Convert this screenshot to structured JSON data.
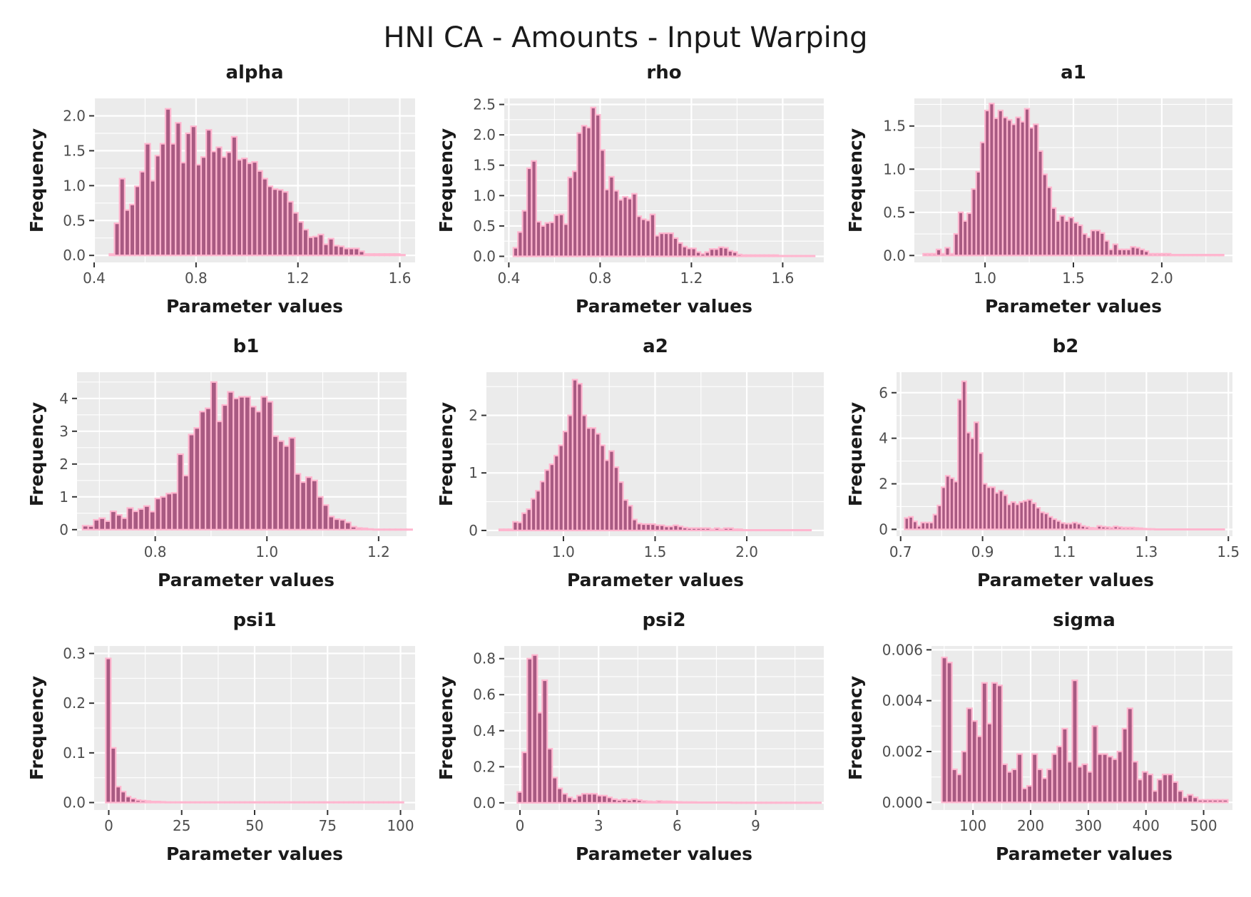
{
  "title": "HNI CA - Amounts - Input Warping",
  "colors": {
    "bar_fill": "#a85a82",
    "bar_outline": "#ffb6cf",
    "panel_bg": "#ebebeb",
    "grid": "#ffffff"
  },
  "chart_data": [
    {
      "type": "bar",
      "title": "alpha",
      "xlabel": "Parameter values",
      "ylabel": "Frequency",
      "xlim": [
        0.4,
        1.66
      ],
      "ylim": [
        -0.1,
        2.25
      ],
      "xticks": [
        0.4,
        0.8,
        1.2,
        1.6
      ],
      "xtick_labels": [
        "0.4",
        "0.8",
        "1.2",
        "1.6"
      ],
      "yticks": [
        0,
        0.5,
        1,
        1.5,
        2
      ],
      "ytick_labels": [
        "0.0",
        "0.5",
        "1.0",
        "1.5",
        "2.0"
      ],
      "bin_start": 0.46,
      "bin_width": 0.02,
      "values": [
        0.02,
        0.46,
        1.1,
        0.65,
        0.73,
        0.99,
        1.2,
        1.6,
        1.07,
        1.43,
        1.6,
        2.1,
        1.6,
        1.9,
        1.33,
        1.75,
        1.85,
        1.3,
        1.41,
        1.8,
        1.49,
        1.55,
        1.41,
        1.48,
        1.7,
        1.37,
        1.39,
        1.32,
        1.34,
        1.21,
        1.1,
        0.99,
        0.95,
        0.94,
        0.91,
        0.77,
        0.61,
        0.48,
        0.37,
        0.26,
        0.27,
        0.3,
        0.16,
        0.24,
        0.14,
        0.13,
        0.1,
        0.1,
        0.1,
        0.06,
        0.02,
        0.02,
        0.02,
        0.02,
        0.02,
        0.02,
        0.02,
        0.01
      ]
    },
    {
      "type": "bar",
      "title": "rho",
      "xlabel": "Parameter values",
      "ylabel": "Frequency",
      "xlim": [
        0.38,
        1.78
      ],
      "ylim": [
        -0.1,
        2.6
      ],
      "xticks": [
        0.4,
        0.8,
        1.2,
        1.6
      ],
      "xtick_labels": [
        "0.4",
        "0.8",
        "1.2",
        "1.6"
      ],
      "yticks": [
        0,
        0.5,
        1,
        1.5,
        2,
        2.5
      ],
      "ytick_labels": [
        "0.0",
        "0.5",
        "1.0",
        "1.5",
        "2.0",
        "2.5"
      ],
      "bin_start": 0.42,
      "bin_width": 0.02,
      "values": [
        0.14,
        0.4,
        0.75,
        1.45,
        1.57,
        0.57,
        0.5,
        0.55,
        0.56,
        0.68,
        0.69,
        0.53,
        1.3,
        1.4,
        2.03,
        2.15,
        2.12,
        2.45,
        2.33,
        1.75,
        1.1,
        1.31,
        1.08,
        0.93,
        0.98,
        0.95,
        1.03,
        0.66,
        0.61,
        0.59,
        0.69,
        0.34,
        0.38,
        0.38,
        0.38,
        0.3,
        0.22,
        0.16,
        0.13,
        0.13,
        0.07,
        0.04,
        0.07,
        0.12,
        0.12,
        0.15,
        0.14,
        0.09,
        0.07,
        0.03,
        0.02,
        0.02,
        0.02,
        0.02,
        0.02,
        0.02,
        0.02,
        0.02,
        0.01,
        0.01,
        0.01,
        0.01,
        0.01,
        0.01,
        0.01,
        0.01
      ]
    },
    {
      "type": "bar",
      "title": "a1",
      "xlabel": "Parameter values",
      "ylabel": "Frequency",
      "xlim": [
        0.6,
        2.4
      ],
      "ylim": [
        -0.08,
        1.82
      ],
      "xticks": [
        1.0,
        1.5,
        2.0
      ],
      "xtick_labels": [
        "1.0",
        "1.5",
        "2.0"
      ],
      "yticks": [
        0,
        0.5,
        1,
        1.5
      ],
      "ytick_labels": [
        "0.0",
        "0.5",
        "1.0",
        "1.5"
      ],
      "bin_start": 0.65,
      "bin_width": 0.025,
      "values": [
        0.02,
        0.02,
        0.02,
        0.07,
        0.02,
        0.09,
        0.02,
        0.25,
        0.5,
        0.4,
        0.49,
        0.77,
        0.97,
        1.31,
        1.68,
        1.76,
        1.59,
        1.68,
        1.6,
        1.57,
        1.52,
        1.6,
        1.55,
        1.7,
        1.48,
        1.52,
        1.21,
        0.94,
        0.79,
        0.55,
        0.4,
        0.46,
        0.4,
        0.44,
        0.38,
        0.35,
        0.25,
        0.21,
        0.29,
        0.29,
        0.26,
        0.17,
        0.07,
        0.13,
        0.07,
        0.07,
        0.07,
        0.1,
        0.09,
        0.07,
        0.05,
        0.02,
        0.02,
        0.02,
        0.02,
        0.02,
        0.01,
        0.01,
        0.01,
        0.01,
        0.01,
        0.01,
        0.01,
        0.01,
        0.01,
        0.01,
        0.01,
        0.01
      ]
    },
    {
      "type": "bar",
      "title": "b1",
      "xlabel": "Parameter values",
      "ylabel": "Frequency",
      "xlim": [
        0.66,
        1.25
      ],
      "ylim": [
        -0.2,
        4.8
      ],
      "xticks": [
        0.8,
        1.0,
        1.2
      ],
      "xtick_labels": [
        "0.8",
        "1.0",
        "1.2"
      ],
      "yticks": [
        0,
        1,
        2,
        3,
        4
      ],
      "ytick_labels": [
        "0",
        "1",
        "2",
        "3",
        "4"
      ],
      "bin_start": 0.67,
      "bin_width": 0.01,
      "values": [
        0.12,
        0.11,
        0.3,
        0.35,
        0.26,
        0.56,
        0.45,
        0.35,
        0.66,
        0.56,
        0.63,
        0.72,
        0.55,
        0.95,
        1.0,
        1.1,
        1.12,
        2.3,
        1.65,
        2.9,
        3.1,
        3.6,
        3.7,
        4.5,
        3.3,
        3.8,
        4.2,
        4.0,
        4.05,
        4.05,
        3.75,
        3.6,
        4.05,
        3.9,
        2.85,
        2.7,
        2.55,
        2.8,
        1.7,
        1.45,
        1.6,
        1.5,
        1.0,
        0.75,
        0.4,
        0.32,
        0.3,
        0.22,
        0.09,
        0.05,
        0.04,
        0.02,
        0.01,
        0.01,
        0.01,
        0.01,
        0.01,
        0.01,
        0.01
      ]
    },
    {
      "type": "bar",
      "title": "a2",
      "xlabel": "Parameter values",
      "ylabel": "Frequency",
      "xlim": [
        0.58,
        2.42
      ],
      "ylim": [
        -0.1,
        2.75
      ],
      "xticks": [
        1.0,
        1.5,
        2.0
      ],
      "xtick_labels": [
        "1.0",
        "1.5",
        "2.0"
      ],
      "yticks": [
        0,
        1,
        2
      ],
      "ytick_labels": [
        "0",
        "1",
        "2"
      ],
      "bin_start": 0.65,
      "bin_width": 0.025,
      "values": [
        0.02,
        0.02,
        0.02,
        0.15,
        0.14,
        0.3,
        0.37,
        0.55,
        0.69,
        0.85,
        1.05,
        1.15,
        1.3,
        1.48,
        1.72,
        2.0,
        2.62,
        2.55,
        2.0,
        1.78,
        1.78,
        1.68,
        1.48,
        1.22,
        1.38,
        1.1,
        0.84,
        0.53,
        0.43,
        0.19,
        0.12,
        0.11,
        0.11,
        0.11,
        0.09,
        0.09,
        0.07,
        0.07,
        0.09,
        0.07,
        0.05,
        0.04,
        0.04,
        0.04,
        0.04,
        0.04,
        0.02,
        0.04,
        0.02,
        0.04,
        0.04,
        0.02,
        0.02,
        0.01,
        0.01,
        0.01,
        0.01,
        0.01,
        0.01,
        0.01,
        0.01,
        0.01,
        0.01,
        0.01,
        0.01,
        0.01,
        0.01,
        0.01
      ]
    },
    {
      "type": "bar",
      "title": "b2",
      "xlabel": "Parameter values",
      "ylabel": "Frequency",
      "xlim": [
        0.69,
        1.51
      ],
      "ylim": [
        -0.3,
        6.9
      ],
      "xticks": [
        0.7,
        0.9,
        1.1,
        1.3,
        1.5
      ],
      "xtick_labels": [
        "0.7",
        "0.9",
        "1.1",
        "1.3",
        "1.5"
      ],
      "yticks": [
        0,
        2,
        4,
        6
      ],
      "ytick_labels": [
        "0",
        "2",
        "4",
        "6"
      ],
      "bin_start": 0.71,
      "bin_width": 0.01,
      "values": [
        0.5,
        0.55,
        0.35,
        0.15,
        0.3,
        0.3,
        0.3,
        0.65,
        1.05,
        1.85,
        2.35,
        2.25,
        2.1,
        5.7,
        6.5,
        4.25,
        4.0,
        4.7,
        3.35,
        2.0,
        1.85,
        1.85,
        1.6,
        1.7,
        1.5,
        1.1,
        1.2,
        1.1,
        1.2,
        1.25,
        1.3,
        1.15,
        0.95,
        0.75,
        0.7,
        0.55,
        0.45,
        0.37,
        0.28,
        0.25,
        0.25,
        0.3,
        0.25,
        0.15,
        0.11,
        0.07,
        0.06,
        0.15,
        0.12,
        0.1,
        0.08,
        0.13,
        0.1,
        0.08,
        0.08,
        0.08,
        0.06,
        0.05,
        0.03,
        0.02,
        0.02,
        0.01,
        0.01,
        0.01,
        0.01,
        0.01,
        0.01,
        0.01,
        0.01,
        0.01,
        0.01,
        0.01,
        0.01,
        0.01,
        0.01,
        0.01,
        0.01,
        0.01
      ]
    },
    {
      "type": "bar",
      "title": "psi1",
      "xlabel": "Parameter values",
      "ylabel": "Frequency",
      "xlim": [
        -5,
        105
      ],
      "ylim": [
        -0.015,
        0.315
      ],
      "xticks": [
        0,
        25,
        50,
        75,
        100
      ],
      "xtick_labels": [
        "0",
        "25",
        "50",
        "75",
        "100"
      ],
      "yticks": [
        0,
        0.1,
        0.2,
        0.3
      ],
      "ytick_labels": [
        "0.0",
        "0.1",
        "0.2",
        "0.3"
      ],
      "bin_start": -1,
      "bin_width": 1.7,
      "values": [
        0.29,
        0.11,
        0.032,
        0.022,
        0.012,
        0.008,
        0.005,
        0.004,
        0.003,
        0.002,
        0.002,
        0.0015,
        0.001,
        0.001,
        0.001,
        0.001,
        0.001,
        0.001,
        0.001,
        0.001,
        0.001,
        0.001,
        0.001,
        0.001,
        0.001,
        0.001,
        0.001,
        0.001,
        0.001,
        0.001,
        0.001,
        0.001,
        0.001,
        0.001,
        0.001,
        0.001,
        0.001,
        0.001,
        0.001,
        0.001,
        0.001,
        0.001,
        0.001,
        0.001,
        0.001,
        0.001,
        0.001,
        0.001,
        0.001,
        0.001,
        0.001,
        0.001,
        0.001,
        0.001,
        0.001,
        0.001,
        0.001,
        0.001,
        0.001,
        0.001
      ]
    },
    {
      "type": "bar",
      "title": "psi2",
      "xlabel": "Parameter values",
      "ylabel": "Frequency",
      "xlim": [
        -0.6,
        11.6
      ],
      "ylim": [
        -0.04,
        0.87
      ],
      "xticks": [
        0,
        3,
        6,
        9
      ],
      "xtick_labels": [
        "0",
        "3",
        "6",
        "9"
      ],
      "yticks": [
        0,
        0.2,
        0.4,
        0.6,
        0.8
      ],
      "ytick_labels": [
        "0.0",
        "0.2",
        "0.4",
        "0.6",
        "0.8"
      ],
      "bin_start": -0.1,
      "bin_width": 0.19,
      "values": [
        0.06,
        0.28,
        0.8,
        0.82,
        0.5,
        0.68,
        0.3,
        0.14,
        0.08,
        0.05,
        0.03,
        0.02,
        0.04,
        0.05,
        0.05,
        0.05,
        0.04,
        0.04,
        0.03,
        0.02,
        0.015,
        0.02,
        0.015,
        0.02,
        0.015,
        0.01,
        0.008,
        0.006,
        0.01,
        0.008,
        0.008,
        0.006,
        0.005,
        0.004,
        0.004,
        0.004,
        0.003,
        0.003,
        0.003,
        0.003,
        0.003,
        0.003,
        0.003,
        0.002,
        0.002,
        0.002,
        0.002,
        0.002,
        0.002,
        0.002,
        0.002,
        0.002,
        0.002,
        0.002,
        0.002,
        0.002,
        0.002,
        0.002,
        0.002,
        0.002,
        0.002
      ]
    },
    {
      "type": "bar",
      "title": "sigma",
      "xlabel": "Parameter values",
      "ylabel": "Frequency",
      "xlim": [
        28,
        550
      ],
      "ylim": [
        -0.0003,
        0.00615
      ],
      "xticks": [
        100,
        200,
        300,
        400,
        500
      ],
      "xtick_labels": [
        "100",
        "200",
        "300",
        "400",
        "500"
      ],
      "yticks": [
        0,
        0.002,
        0.004,
        0.006
      ],
      "ytick_labels": [
        "0.000",
        "0.002",
        "0.004",
        "0.006"
      ],
      "bin_start": 46,
      "bin_width": 8.7,
      "values": [
        0.0057,
        0.0055,
        0.0013,
        0.0011,
        0.002,
        0.0037,
        0.0032,
        0.0026,
        0.0047,
        0.0031,
        0.0047,
        0.0046,
        0.0015,
        0.0012,
        0.0013,
        0.0019,
        0.00055,
        0.00065,
        0.0019,
        0.0013,
        0.00095,
        0.0013,
        0.0019,
        0.0022,
        0.0029,
        0.0016,
        0.0048,
        0.0014,
        0.0015,
        0.0012,
        0.003,
        0.0019,
        0.0019,
        0.0018,
        0.0017,
        0.002,
        0.0029,
        0.0037,
        0.0016,
        0.0009,
        0.0012,
        0.0011,
        0.00045,
        0.0009,
        0.0011,
        0.0011,
        0.0008,
        0.00045,
        0.0002,
        0.0003,
        0.0002,
        0.0001,
        0.0001,
        0.0001,
        0.0001,
        0.0001,
        0.0001
      ]
    }
  ]
}
